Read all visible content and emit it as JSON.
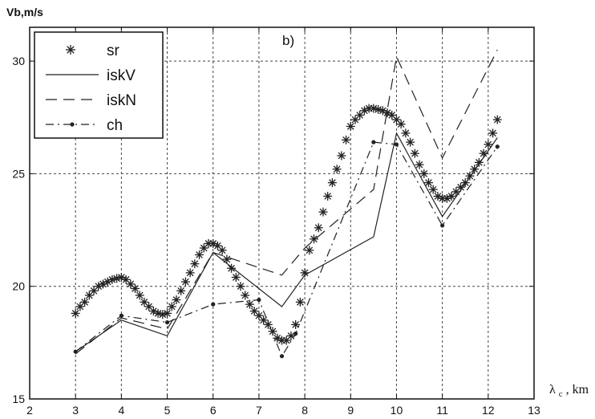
{
  "chart_data": {
    "type": "line",
    "ylabel": "Vb,m/s",
    "xlabel_main": "λ",
    "xlabel_sub": "c",
    "xlabel_unit": ", km",
    "annotation": "b)",
    "x_ticks": [
      2,
      3,
      4,
      5,
      6,
      7,
      8,
      9,
      10,
      11,
      12,
      13
    ],
    "y_ticks": [
      15,
      20,
      25,
      30
    ],
    "xlim": [
      2,
      13
    ],
    "ylim": [
      15,
      31.5
    ],
    "grid": true,
    "legend_position": "top-left",
    "series": [
      {
        "name": "sr",
        "style": "asterisk",
        "color": "#222222",
        "x": [
          3.0,
          3.1,
          3.2,
          3.3,
          3.4,
          3.5,
          3.6,
          3.7,
          3.8,
          3.9,
          4.0,
          4.1,
          4.2,
          4.3,
          4.4,
          4.5,
          4.6,
          4.7,
          4.8,
          4.9,
          5.0,
          5.1,
          5.2,
          5.3,
          5.4,
          5.5,
          5.6,
          5.7,
          5.8,
          5.9,
          6.0,
          6.1,
          6.2,
          6.3,
          6.4,
          6.5,
          6.6,
          6.7,
          6.8,
          6.9,
          7.0,
          7.1,
          7.2,
          7.3,
          7.4,
          7.5,
          7.6,
          7.7,
          7.8,
          7.9,
          8.0,
          8.1,
          8.2,
          8.3,
          8.4,
          8.5,
          8.6,
          8.7,
          8.8,
          8.9,
          9.0,
          9.1,
          9.2,
          9.3,
          9.4,
          9.5,
          9.6,
          9.7,
          9.8,
          9.9,
          10.0,
          10.1,
          10.2,
          10.3,
          10.4,
          10.5,
          10.6,
          10.7,
          10.8,
          10.9,
          11.0,
          11.1,
          11.2,
          11.3,
          11.4,
          11.5,
          11.6,
          11.7,
          11.8,
          11.9,
          12.0,
          12.1,
          12.2
        ],
        "values": [
          18.8,
          19.1,
          19.3,
          19.6,
          19.8,
          20.0,
          20.1,
          20.2,
          20.3,
          20.35,
          20.4,
          20.3,
          20.1,
          19.9,
          19.6,
          19.3,
          19.1,
          18.9,
          18.8,
          18.75,
          18.8,
          19.1,
          19.4,
          19.8,
          20.2,
          20.6,
          21.0,
          21.4,
          21.7,
          21.9,
          21.9,
          21.8,
          21.6,
          21.2,
          20.8,
          20.4,
          20.0,
          19.6,
          19.2,
          18.9,
          18.7,
          18.5,
          18.3,
          18.0,
          17.7,
          17.6,
          17.6,
          17.8,
          18.3,
          19.3,
          20.6,
          21.6,
          22.1,
          22.6,
          23.3,
          24.0,
          24.6,
          25.2,
          25.8,
          26.5,
          27.1,
          27.4,
          27.6,
          27.8,
          27.9,
          27.9,
          27.85,
          27.8,
          27.7,
          27.6,
          27.4,
          27.2,
          26.8,
          26.4,
          25.9,
          25.4,
          25.0,
          24.6,
          24.3,
          24.0,
          23.9,
          23.9,
          24.0,
          24.2,
          24.4,
          24.6,
          24.9,
          25.2,
          25.5,
          25.9,
          26.3,
          26.8,
          27.4
        ]
      },
      {
        "name": "iskV",
        "style": "solid",
        "color": "#222222",
        "x": [
          3,
          4,
          5,
          6,
          7.5,
          8.0,
          9.5,
          10.0,
          11.0,
          12.2
        ],
        "values": [
          17.1,
          18.5,
          17.8,
          21.5,
          19.1,
          20.5,
          22.2,
          26.8,
          23.1,
          26.6
        ]
      },
      {
        "name": "iskN",
        "style": "dashed",
        "color": "#222222",
        "x": [
          3,
          4,
          5,
          6,
          7.5,
          8.0,
          9.5,
          10.0,
          11.0,
          12.2
        ],
        "values": [
          17.0,
          18.6,
          18.1,
          21.5,
          20.5,
          21.7,
          24.3,
          30.2,
          25.7,
          30.5
        ]
      },
      {
        "name": "ch",
        "style": "dash-dot",
        "color": "#222222",
        "x": [
          3,
          4,
          5,
          6,
          7.0,
          7.5,
          7.8,
          9.5,
          10.0,
          11.0,
          12.2
        ],
        "values": [
          17.1,
          18.7,
          18.4,
          19.2,
          19.4,
          16.9,
          17.9,
          26.4,
          26.3,
          22.7,
          26.2
        ]
      }
    ]
  }
}
